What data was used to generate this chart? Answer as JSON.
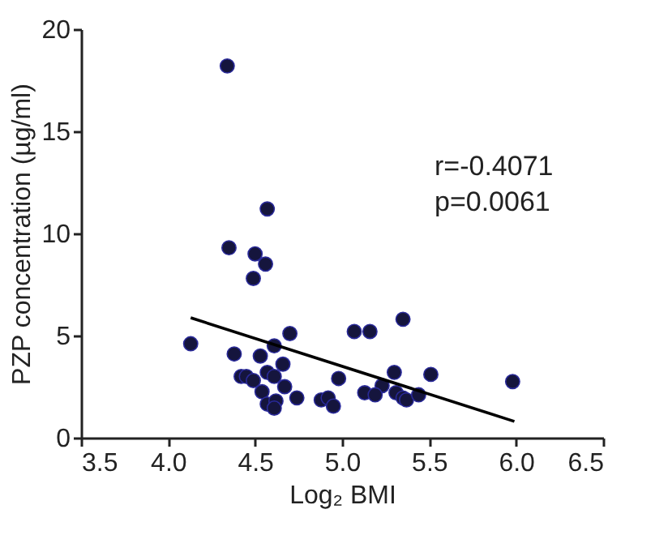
{
  "chart_data": {
    "type": "scatter",
    "xlabel": "Log₂ BMI",
    "ylabel": "PZP concentration (µg/ml)",
    "xlim": [
      3.5,
      6.5
    ],
    "xticks": [
      3.5,
      {
        "value": 4,
        "label": "4.0"
      },
      4.5,
      {
        "value": 5,
        "label": "5.0"
      },
      5.5,
      {
        "value": 6,
        "label": "6.0"
      },
      6.5
    ],
    "ylim": [
      0,
      20
    ],
    "yticks": [
      0,
      5,
      10,
      15,
      20
    ],
    "grid": false,
    "annotations": [
      "r=-0.4071",
      "p=0.0061"
    ],
    "series": [
      {
        "color": "#15153d",
        "marker": "circle",
        "x": [
          4.34,
          4.57,
          4.35,
          4.5,
          4.56,
          4.49,
          5.35,
          5.07,
          5.16,
          4.7,
          4.13,
          4.61,
          4.38,
          4.53,
          4.66,
          5.3,
          5.51,
          4.57,
          4.42,
          4.45,
          4.61,
          4.49,
          4.98,
          5.98,
          5.23,
          4.67,
          4.54,
          5.13,
          5.19,
          5.31,
          5.35,
          5.37,
          5.44,
          4.74,
          4.88,
          4.92,
          4.95,
          4.57,
          4.62,
          4.61
        ],
        "values": [
          18.2,
          11.2,
          9.3,
          9.0,
          8.5,
          7.8,
          5.8,
          5.2,
          5.2,
          5.1,
          4.6,
          4.5,
          4.1,
          4.0,
          3.6,
          3.2,
          3.1,
          3.2,
          3.0,
          3.0,
          3.0,
          2.8,
          2.9,
          2.75,
          2.55,
          2.5,
          2.25,
          2.2,
          2.1,
          2.2,
          1.95,
          1.85,
          2.1,
          1.95,
          1.85,
          1.95,
          1.55,
          1.65,
          1.8,
          1.45
        ]
      },
      {
        "type": "line",
        "color": "#000000",
        "marker": "none",
        "x": [
          4.13,
          5.99
        ],
        "values": [
          5.87,
          0.8
        ]
      }
    ]
  }
}
